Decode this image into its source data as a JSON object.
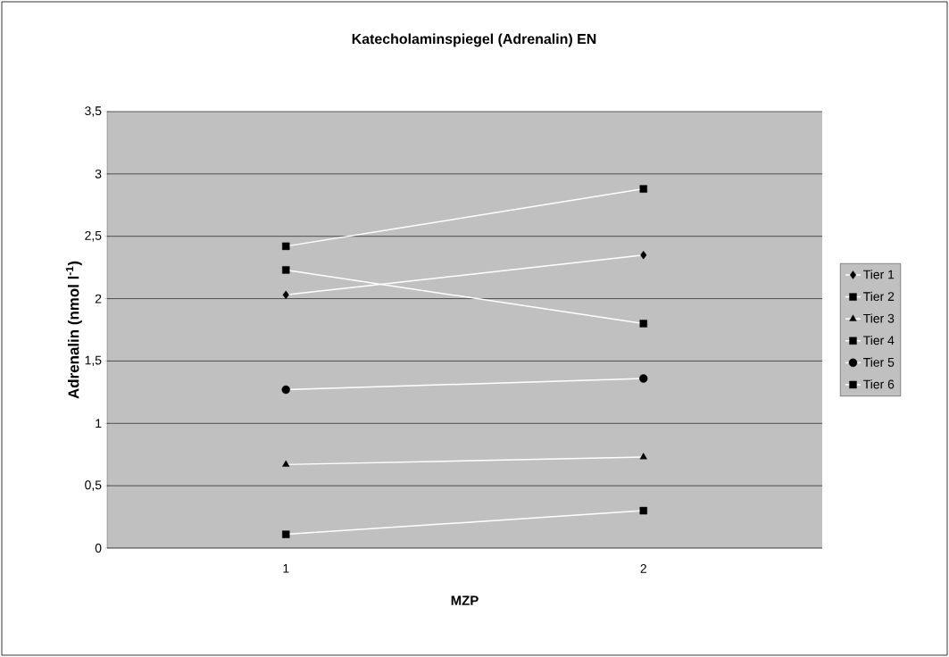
{
  "chart_data": {
    "type": "line",
    "title": "Katecholaminspiegel (Adrenalin) EN",
    "xlabel": "MZP",
    "ylabel": "Adrenalin (nmol l$^{-1}$)",
    "categories": [
      "1",
      "2"
    ],
    "series": [
      {
        "name": "Tier 1",
        "color": "#ffffff",
        "marker": "diamond",
        "values": [
          2.03,
          2.35
        ]
      },
      {
        "name": "Tier 2",
        "color": "#ffffff",
        "marker": "square",
        "values": [
          2.23,
          1.8
        ]
      },
      {
        "name": "Tier 3",
        "color": "#ffffff",
        "marker": "triangle",
        "values": [
          0.67,
          0.73
        ]
      },
      {
        "name": "Tier 4",
        "color": "#ffffff",
        "marker": "square",
        "values": [
          2.42,
          2.88
        ]
      },
      {
        "name": "Tier 5",
        "color": "#ffffff",
        "marker": "circle",
        "values": [
          1.27,
          1.36
        ]
      },
      {
        "name": "Tier 6",
        "color": "#ffffff",
        "marker": "square",
        "values": [
          0.11,
          0.3
        ]
      }
    ],
    "ylim": [
      0,
      3.5
    ],
    "yticks": [
      0,
      {
        "value": 0.5,
        "label": "0,5"
      },
      1,
      {
        "value": 1.5,
        "label": "1,5"
      },
      2,
      {
        "value": 2.5,
        "label": "2,5"
      },
      3,
      {
        "value": 3.5,
        "label": "3,5"
      }
    ],
    "grid": "y",
    "legend": "right",
    "line_style": "solid"
  }
}
